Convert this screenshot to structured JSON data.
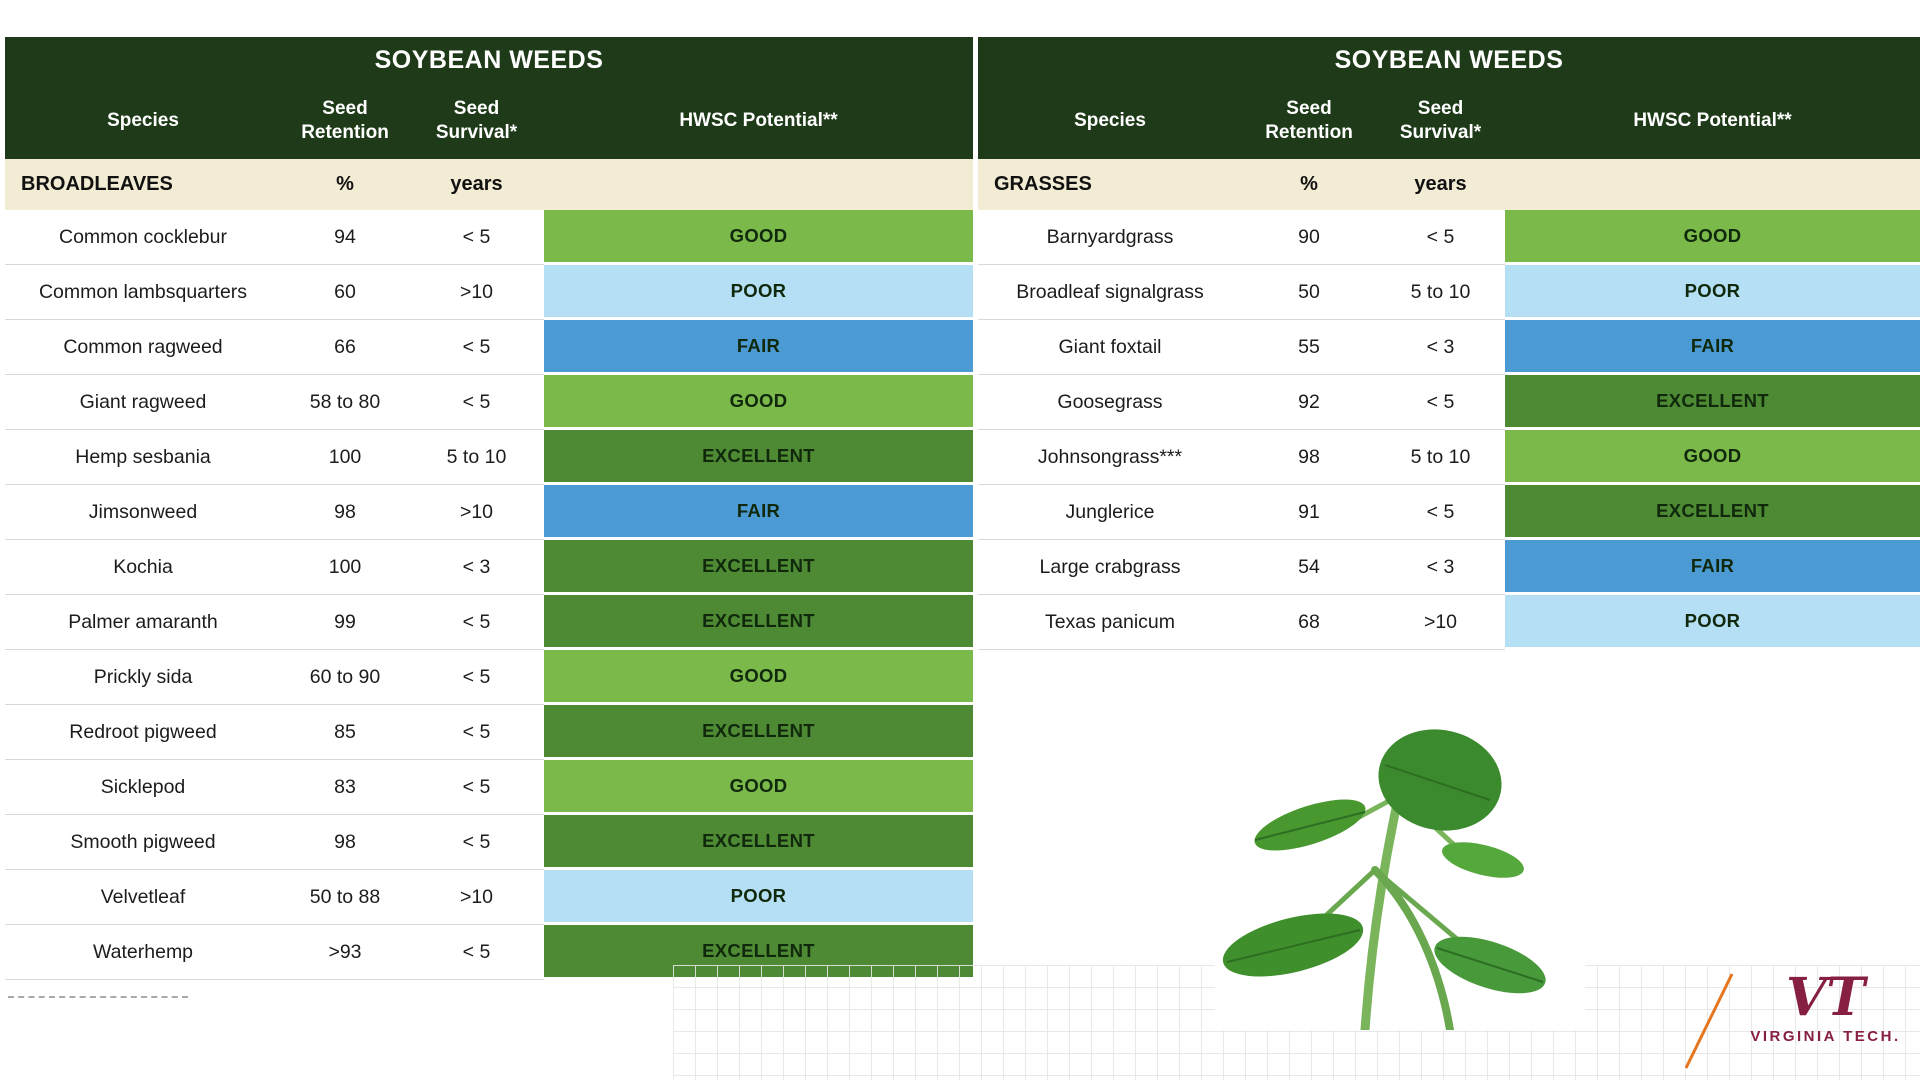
{
  "colors": {
    "header_bg": "#1e3a19",
    "subheader_bg": "#f3ecd5",
    "maroon": "#861f41",
    "orange": "#e5751f",
    "ratings": {
      "GOOD": "#7cb94b",
      "EXCELLENT": "#4e8a33",
      "FAIR": "#4c9ad3",
      "POOR": "#b5dff4"
    }
  },
  "chart_data": [
    {
      "type": "table",
      "title": "SOYBEAN WEEDS",
      "columns": [
        "Species",
        "Seed Retention",
        "Seed Survival*",
        "HWSC Potential**"
      ],
      "group_label": "BROADLEAVES",
      "units": {
        "retention": "%",
        "survival": "years"
      },
      "rows": [
        {
          "species": "Common cocklebur",
          "retention": "94",
          "survival": "< 5",
          "potential": "GOOD"
        },
        {
          "species": "Common lambsquarters",
          "retention": "60",
          "survival": ">10",
          "potential": "POOR"
        },
        {
          "species": "Common ragweed",
          "retention": "66",
          "survival": "< 5",
          "potential": "FAIR"
        },
        {
          "species": "Giant ragweed",
          "retention": "58 to 80",
          "survival": "< 5",
          "potential": "GOOD"
        },
        {
          "species": "Hemp sesbania",
          "retention": "100",
          "survival": "5 to 10",
          "potential": "EXCELLENT"
        },
        {
          "species": "Jimsonweed",
          "retention": "98",
          "survival": ">10",
          "potential": "FAIR"
        },
        {
          "species": "Kochia",
          "retention": "100",
          "survival": "< 3",
          "potential": "EXCELLENT"
        },
        {
          "species": "Palmer amaranth",
          "retention": "99",
          "survival": "< 5",
          "potential": "EXCELLENT"
        },
        {
          "species": "Prickly sida",
          "retention": "60 to 90",
          "survival": "< 5",
          "potential": "GOOD"
        },
        {
          "species": "Redroot pigweed",
          "retention": "85",
          "survival": "< 5",
          "potential": "EXCELLENT"
        },
        {
          "species": "Sicklepod",
          "retention": "83",
          "survival": "< 5",
          "potential": "GOOD"
        },
        {
          "species": "Smooth pigweed",
          "retention": "98",
          "survival": "< 5",
          "potential": "EXCELLENT"
        },
        {
          "species": "Velvetleaf",
          "retention": "50 to 88",
          "survival": ">10",
          "potential": "POOR"
        },
        {
          "species": "Waterhemp",
          "retention": ">93",
          "survival": "< 5",
          "potential": "EXCELLENT"
        }
      ]
    },
    {
      "type": "table",
      "title": "SOYBEAN WEEDS",
      "columns": [
        "Species",
        "Seed Retention",
        "Seed Survival*",
        "HWSC Potential**"
      ],
      "group_label": "GRASSES",
      "units": {
        "retention": "%",
        "survival": "years"
      },
      "rows": [
        {
          "species": "Barnyardgrass",
          "retention": "90",
          "survival": "< 5",
          "potential": "GOOD"
        },
        {
          "species": "Broadleaf signalgrass",
          "retention": "50",
          "survival": "5 to 10",
          "potential": "POOR"
        },
        {
          "species": "Giant foxtail",
          "retention": "55",
          "survival": "< 3",
          "potential": "FAIR"
        },
        {
          "species": "Goosegrass",
          "retention": "92",
          "survival": "< 5",
          "potential": "EXCELLENT"
        },
        {
          "species": "Johnsongrass***",
          "retention": "98",
          "survival": "5 to 10",
          "potential": "GOOD"
        },
        {
          "species": "Junglerice",
          "retention": "91",
          "survival": "< 5",
          "potential": "EXCELLENT"
        },
        {
          "species": "Large crabgrass",
          "retention": "54",
          "survival": "< 3",
          "potential": "FAIR"
        },
        {
          "species": "Texas panicum",
          "retention": "68",
          "survival": ">10",
          "potential": "POOR"
        }
      ]
    }
  ],
  "branding": {
    "logo_text": "VT",
    "name": "VIRGINIA TECH."
  }
}
